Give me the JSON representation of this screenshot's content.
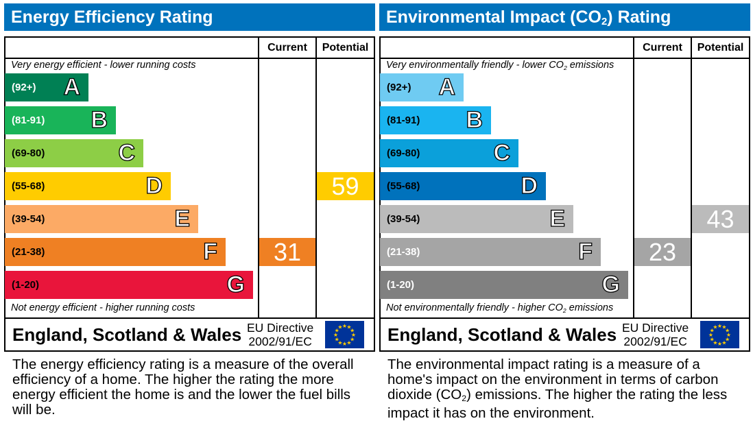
{
  "chart_data": [
    {
      "type": "bar",
      "title": {
        "pre": "Energy Efficiency Rating",
        "sub": "",
        "post": ""
      },
      "columns": {
        "current": "Current",
        "potential": "Potential"
      },
      "top_note": {
        "pre": "Very energy efficient - lower running costs",
        "sub": "",
        "post": ""
      },
      "bottom_note": {
        "pre": "Not energy efficient - higher running costs",
        "sub": "",
        "post": ""
      },
      "bands": [
        {
          "letter": "A",
          "range": "(92+)",
          "color": "#008054",
          "text_color": "#ffffff"
        },
        {
          "letter": "B",
          "range": "(81-91)",
          "color": "#19b459",
          "text_color": "#ffffff"
        },
        {
          "letter": "C",
          "range": "(69-80)",
          "color": "#8dce46",
          "text_color": "#000000"
        },
        {
          "letter": "D",
          "range": "(55-68)",
          "color": "#ffcc00",
          "text_color": "#000000"
        },
        {
          "letter": "E",
          "range": "(39-54)",
          "color": "#fcaa65",
          "text_color": "#000000"
        },
        {
          "letter": "F",
          "range": "(21-38)",
          "color": "#ef8023",
          "text_color": "#000000"
        },
        {
          "letter": "G",
          "range": "(1-20)",
          "color": "#e9153b",
          "text_color": "#000000"
        }
      ],
      "current": {
        "value": "31",
        "band": "F"
      },
      "potential": {
        "value": "59",
        "band": "D"
      },
      "region": "England, Scotland & Wales",
      "eu_directive": [
        "EU Directive",
        "2002/91/EC"
      ],
      "description": {
        "pre": "The energy efficiency rating is a measure of the overall efficiency of a home. The higher the rating the more energy efficient the home is and the lower the fuel bills will be.",
        "sub": "",
        "post": ""
      }
    },
    {
      "type": "bar",
      "title": {
        "pre": "Environmental Impact (CO",
        "sub": "2",
        "post": ") Rating"
      },
      "columns": {
        "current": "Current",
        "potential": "Potential"
      },
      "top_note": {
        "pre": "Very environmentally friendly - lower CO",
        "sub": "2",
        "post": " emissions"
      },
      "bottom_note": {
        "pre": "Not environmentally friendly - higher CO",
        "sub": "2",
        "post": " emissions"
      },
      "bands": [
        {
          "letter": "A",
          "range": "(92+)",
          "color": "#6fcbf2",
          "text_color": "#000000"
        },
        {
          "letter": "B",
          "range": "(81-91)",
          "color": "#1ab4f0",
          "text_color": "#000000"
        },
        {
          "letter": "C",
          "range": "(69-80)",
          "color": "#0ba0da",
          "text_color": "#000000"
        },
        {
          "letter": "D",
          "range": "(55-68)",
          "color": "#0072bc",
          "text_color": "#000000"
        },
        {
          "letter": "E",
          "range": "(39-54)",
          "color": "#bbbbbb",
          "text_color": "#000000"
        },
        {
          "letter": "F",
          "range": "(21-38)",
          "color": "#a5a5a5",
          "text_color": "#ffffff"
        },
        {
          "letter": "G",
          "range": "(1-20)",
          "color": "#808080",
          "text_color": "#ffffff"
        }
      ],
      "current": {
        "value": "23",
        "band": "F"
      },
      "potential": {
        "value": "43",
        "band": "E"
      },
      "region": "England, Scotland & Wales",
      "eu_directive": [
        "EU Directive",
        "2002/91/EC"
      ],
      "description": {
        "pre": "The environmental impact rating is a measure of a home's impact on the environment in terms of carbon dioxide (CO",
        "sub": "2",
        "post": ") emissions. The higher the rating the less impact it has on the environment."
      }
    }
  ]
}
